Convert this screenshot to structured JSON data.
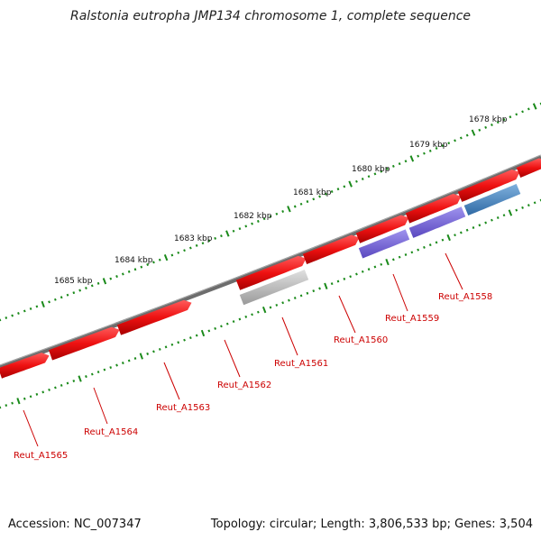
{
  "title": "Ralstonia eutropha JMP134 chromosome 1, complete sequence",
  "footer": {
    "accession": "Accession: NC_007347",
    "summary": "Topology: circular; Length: 3,806,533 bp; Genes: 3,504"
  },
  "colors": {
    "backbone": "#7a7a7a",
    "gene_red": "#ee1111",
    "gene_gray": "#bbbbbb",
    "gene_purple": "#7766dd",
    "gene_blue": "#4a86c0",
    "tick_green": "#1a8a1a",
    "label_red": "#cc0000"
  },
  "scale_labels": [
    "1678 kbp",
    "1679 kbp",
    "1680 kbp",
    "1681 kbp",
    "1682 kbp",
    "1683 kbp",
    "1684 kbp",
    "1685 kbp"
  ],
  "genes": [
    {
      "label": "Reut_A1558",
      "color": "blue"
    },
    {
      "label": "Reut_A1559",
      "color": "purple"
    },
    {
      "label": "Reut_A1560",
      "color": "red"
    },
    {
      "label": "Reut_A1561",
      "color": "gray"
    },
    {
      "label": "Reut_A1562",
      "color": "red"
    },
    {
      "label": "Reut_A1563",
      "color": "red"
    },
    {
      "label": "Reut_A1564",
      "color": "red"
    },
    {
      "label": "Reut_A1565",
      "color": "red"
    }
  ]
}
